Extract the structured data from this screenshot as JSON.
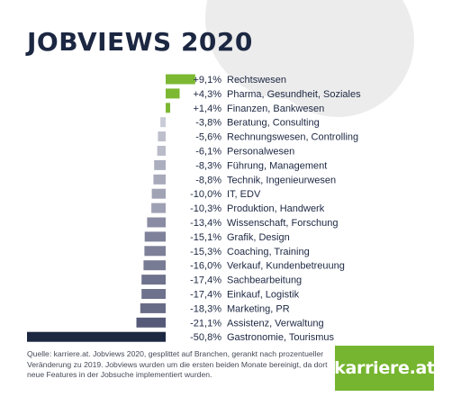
{
  "title": "JOBVIEWS 2020",
  "footer": "Quelle: karriere.at. Jobviews 2020, gesplittet auf Branchen, gerankt nach prozentueller Veränderung zu 2019. Jobviews wurden um die ersten beiden Monate bereinigt, da dort neue Features in der Jobsuche implementiert wurden.",
  "logo": "karriere.at",
  "colors": {
    "positive": "#7cb832",
    "negative_light": "#c9cbd6",
    "negative_dark": "#565a78",
    "last": "#1c2742",
    "text": "#1c2742"
  },
  "chart_data": {
    "type": "bar",
    "orientation": "horizontal",
    "categories": [
      "Rechtswesen",
      "Pharma, Gesundheit, Soziales",
      "Finanzen, Bankwesen",
      "Beratung, Consulting",
      "Rechnungswesen, Controlling",
      "Personalwesen",
      "Führung, Management",
      "Technik, Ingenieurwesen",
      "IT, EDV",
      "Produktion, Handwerk",
      "Wissenschaft, Forschung",
      "Grafik, Design",
      "Coaching, Training",
      "Verkauf, Kundenbetreuung",
      "Sachbearbeitung",
      "Einkauf, Logistik",
      "Marketing, PR",
      "Assistenz, Verwaltung",
      "Gastronomie, Tourismus"
    ],
    "values": [
      9.1,
      4.3,
      1.4,
      -3.8,
      -5.6,
      -6.1,
      -8.3,
      -8.8,
      -10.0,
      -10.3,
      -13.4,
      -15.1,
      -15.3,
      -16.0,
      -17.4,
      -17.4,
      -18.3,
      -21.1,
      -50.8
    ],
    "value_labels": [
      "+9,1%",
      "+4,3%",
      "+1,4%",
      "-3,8%",
      "-5,6%",
      "-6,1%",
      "-8,3%",
      "-8,8%",
      "-10,0%",
      "-10,3%",
      "-13,4%",
      "-15,1%",
      "-15,3%",
      "-16,0%",
      "-17,4%",
      "-17,4%",
      "-18,3%",
      "-21,1%",
      "-50,8%"
    ]
  }
}
